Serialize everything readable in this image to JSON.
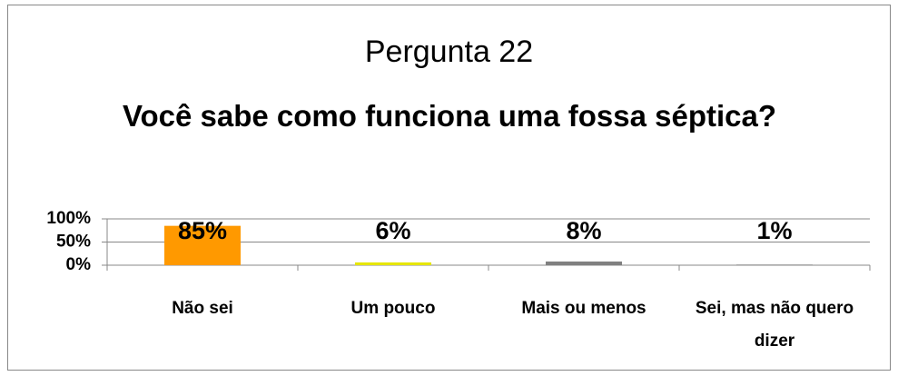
{
  "chart_data": {
    "type": "bar",
    "title": "Pergunta 22",
    "subtitle": "Você sabe como funciona uma fossa séptica?",
    "categories": [
      "Não sei",
      "Um pouco",
      "Mais ou menos",
      "Sei, mas não quero dizer"
    ],
    "values": [
      85,
      6,
      8,
      1
    ],
    "value_labels": [
      "85%",
      "6%",
      "8%",
      "1%"
    ],
    "colors": [
      "#ff9900",
      "#e6e600",
      "#808080",
      "#595959"
    ],
    "ylim": [
      0,
      100
    ],
    "yticks": [
      {
        "value": 0,
        "label": "0%"
      },
      {
        "value": 50,
        "label": "50%"
      },
      {
        "value": 100,
        "label": "100%"
      }
    ],
    "grid": true
  }
}
